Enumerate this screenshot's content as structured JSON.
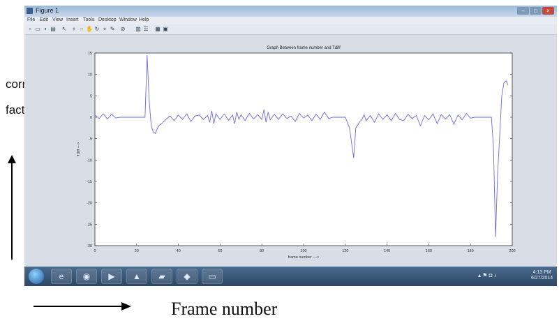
{
  "annotation": {
    "ylabel_line1": "correction",
    "ylabel_line2": "factor(Δ 𝑥)",
    "xlabel": "Frame number"
  },
  "window": {
    "title": "Figure 1",
    "menu": [
      "File",
      "Edit",
      "View",
      "Insert",
      "Tools",
      "Desktop",
      "Window",
      "Help"
    ],
    "toolbar_icons": [
      "new-icon",
      "open-icon",
      "save-icon",
      "print-icon",
      "pointer-icon",
      "zoom-in-icon",
      "zoom-out-icon",
      "pan-icon",
      "rotate-icon",
      "datacursor-icon",
      "brush-icon",
      "link-icon",
      "colorbar-icon",
      "legend-icon",
      "grid-icon",
      "dock-icon"
    ]
  },
  "taskbar": {
    "apps": [
      "start-icon",
      "ie-icon",
      "explorer-icon",
      "media-icon",
      "matlab-icon",
      "folder-icon",
      "paint-icon",
      "screen-icon"
    ],
    "clock_time": "4:13 PM",
    "clock_date": "6/27/2014"
  },
  "colors": {
    "line": "#6a6ae8",
    "axes_bg": "#ffffff",
    "figure_bg": "#d9dde6"
  },
  "chart_data": {
    "type": "line",
    "title": "Graph Between frame number and Tdiff",
    "xlabel": "frame number --->",
    "ylabel": "Tdiff --->",
    "xlim": [
      0,
      200
    ],
    "ylim": [
      -30,
      15
    ],
    "xticks": [
      0,
      20,
      40,
      60,
      80,
      100,
      120,
      140,
      160,
      180,
      200
    ],
    "yticks": [
      15,
      10,
      5,
      0,
      -5,
      -10,
      -15,
      -20,
      -25,
      -30
    ],
    "grid": false,
    "series": [
      {
        "x": [
          0,
          2,
          4,
          6,
          8,
          10,
          12,
          14,
          16,
          18,
          20,
          22,
          23,
          24,
          25,
          26,
          27,
          28,
          29,
          30,
          31,
          32,
          33,
          34,
          36,
          38,
          40,
          42,
          44,
          46,
          48,
          50,
          52,
          54,
          55,
          56,
          57,
          58,
          60,
          62,
          64,
          66,
          67,
          68,
          69,
          70,
          72,
          74,
          76,
          78,
          80,
          81,
          82,
          83,
          84,
          86,
          88,
          90,
          92,
          94,
          96,
          98,
          100,
          102,
          104,
          106,
          108,
          110,
          112,
          114,
          116,
          118,
          120,
          122,
          124,
          125,
          126,
          127,
          128,
          129,
          130,
          132,
          134,
          136,
          138,
          140,
          142,
          144,
          146,
          148,
          150,
          152,
          154,
          156,
          158,
          160,
          162,
          164,
          166,
          168,
          170,
          172,
          174,
          176,
          178,
          180,
          182,
          184,
          186,
          188,
          190,
          191,
          192,
          193,
          194,
          195,
          196,
          197,
          198
        ],
        "y": [
          0.5,
          -0.3,
          0.8,
          -0.4,
          0.7,
          -0.2,
          0,
          0,
          0,
          0,
          0,
          0,
          0,
          0,
          14.5,
          4,
          -2,
          -3.5,
          -3.8,
          -2.5,
          -1.8,
          -1.5,
          -1,
          -0.5,
          0.3,
          -0.8,
          0.5,
          -0.5,
          0.8,
          -1,
          0.3,
          0.5,
          -0.5,
          0.4,
          -1.2,
          1.5,
          -1.5,
          0.8,
          -0.5,
          0.8,
          -0.7,
          0.5,
          -1.5,
          1.2,
          -0.5,
          0.6,
          -0.8,
          0.9,
          -0.4,
          0.6,
          -0.5,
          1.8,
          -1.2,
          1.2,
          -0.6,
          0.7,
          -0.5,
          0.8,
          -0.3,
          0.3,
          -1,
          0.9,
          -0.2,
          0.5,
          -0.8,
          0.7,
          -0.5,
          1.2,
          -0.3,
          0,
          0,
          0,
          0,
          -2.5,
          -9.5,
          -2.5,
          -1.8,
          -1,
          -0.5,
          0.6,
          -0.8,
          0.4,
          -1.2,
          0.8,
          -0.5,
          0.6,
          -0.8,
          0.9,
          -0.5,
          -0.8,
          0.7,
          -0.3,
          0.4,
          -2,
          0.4,
          -0.6,
          0.8,
          -1.5,
          0.6,
          -0.4,
          0.6,
          -1.6,
          0.5,
          -0.6,
          0.9,
          -0.2,
          0,
          0,
          0,
          0,
          0,
          -7,
          -28,
          -13,
          -4,
          5,
          8,
          8.5,
          7.5
        ]
      }
    ]
  }
}
